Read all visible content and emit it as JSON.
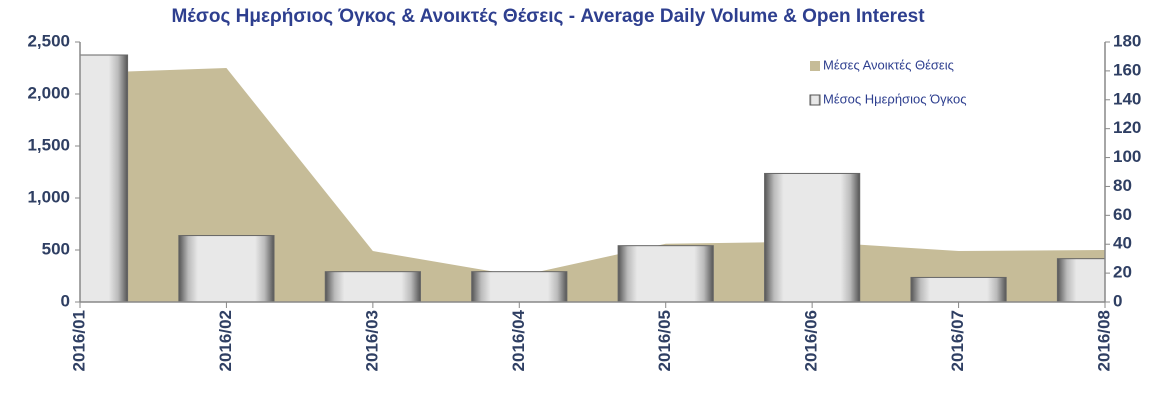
{
  "chart_data": {
    "type": "combo",
    "title": "Μέσος Ημερήσιος Όγκος & Ανοικτές Θέσεις - Average Daily Volume & Open Interest",
    "categories": [
      "2016/01",
      "2016/02",
      "2016/03",
      "2016/04",
      "2016/05",
      "2016/06",
      "2016/07",
      "2016/08"
    ],
    "series": [
      {
        "name": "Μέσες Ανοικτές Θέσεις",
        "type": "area",
        "color": "#c6bc98",
        "values": [
          2200,
          2250,
          490,
          250,
          560,
          580,
          490,
          500
        ]
      },
      {
        "name": "Μέσος Ημερήσιος Όγκος",
        "type": "bar",
        "axis": "y2",
        "color": "#e4e4e4",
        "values": [
          171,
          46,
          21,
          21,
          39,
          89,
          17,
          30
        ]
      }
    ],
    "ylim": [
      0,
      2500
    ],
    "yticks": [
      0,
      500,
      {
        "value": 1000,
        "label": "1,000"
      },
      {
        "value": 1500,
        "label": "1,500"
      },
      {
        "value": 2000,
        "label": "2,000"
      },
      {
        "value": 2500,
        "label": "2,500"
      }
    ],
    "y2lim": [
      0,
      180
    ],
    "y2ticks": [
      0,
      20,
      40,
      60,
      80,
      100,
      120,
      140,
      160,
      180
    ],
    "legend": "top-right"
  }
}
